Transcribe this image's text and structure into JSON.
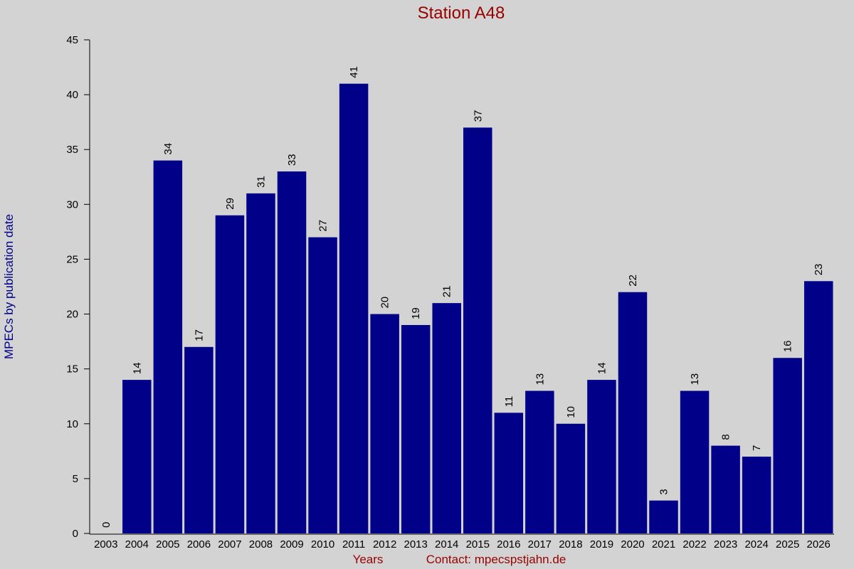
{
  "chart_data": {
    "type": "bar",
    "title": "Station A48",
    "y_label": "MPECs by publication date",
    "x_label": "Years",
    "contact": "Contact: mpecspstjahn.de",
    "categories": [
      "2003",
      "2004",
      "2005",
      "2006",
      "2007",
      "2008",
      "2009",
      "2010",
      "2011",
      "2012",
      "2013",
      "2014",
      "2015",
      "2016",
      "2017",
      "2018",
      "2019",
      "2020",
      "2021",
      "2022",
      "2023",
      "2024",
      "2025",
      "2026"
    ],
    "values": [
      0,
      14,
      34,
      17,
      29,
      31,
      33,
      27,
      41,
      20,
      19,
      21,
      37,
      11,
      13,
      10,
      14,
      22,
      3,
      13,
      8,
      7,
      16,
      23
    ],
    "color": "#000088",
    "ylim": [
      0,
      45
    ],
    "yticks": [
      0,
      5,
      10,
      15,
      20,
      25,
      30,
      35,
      40,
      45
    ],
    "grid": false
  }
}
